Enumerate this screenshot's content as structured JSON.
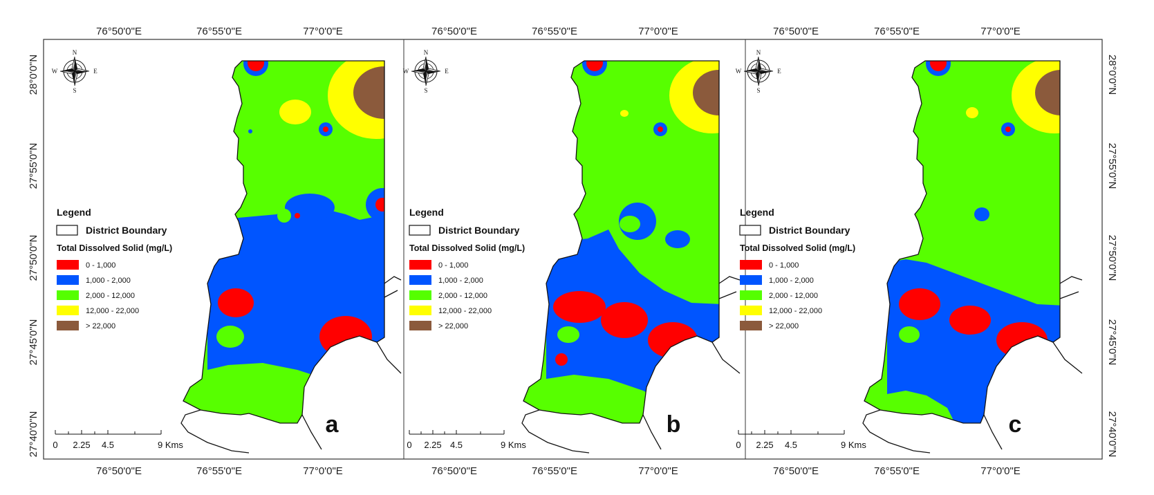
{
  "figure": {
    "top_longitudes": [
      "76°50'0\"E",
      "76°55'0\"E",
      "77°0'0\"E",
      "76°50'0\"E",
      "76°55'0\"E",
      "77°0'0\"E",
      "76°50'0\"E",
      "76°55'0\"E",
      "77°0'0\"E"
    ],
    "bottom_longitudes": [
      "76°50'0\"E",
      "76°55'0\"E",
      "77°0'0\"E",
      "76°50'0\"E",
      "76°55'0\"E",
      "77°0'0\"E",
      "76°50'0\"E",
      "76°55'0\"E",
      "77°0'0\"E"
    ],
    "latitudes": [
      "28°0'0\"N",
      "27°55'0\"N",
      "27°50'0\"N",
      "27°45'0\"N",
      "27°40'0\"N"
    ]
  },
  "legend": {
    "title": "Legend",
    "boundary_label": "District Boundary",
    "tds_title": "Total Dissolved Solid (mg/L)",
    "classes": [
      {
        "label": "0 - 1,000",
        "color": "#ff0000"
      },
      {
        "label": "1,000 - 2,000",
        "color": "#0055ff"
      },
      {
        "label": "2,000 - 12,000",
        "color": "#55ff00"
      },
      {
        "label": "12,000 - 22,000",
        "color": "#ffff00"
      },
      {
        "label": "> 22,000",
        "color": "#8b5a3c"
      }
    ]
  },
  "scale_bar": {
    "labels": [
      "0",
      "2.25",
      "4.5",
      "9 Kms"
    ]
  },
  "compass": {
    "n": "N",
    "s": "S",
    "e": "E",
    "w": "W"
  },
  "panels": [
    {
      "letter": "a"
    },
    {
      "letter": "b"
    },
    {
      "letter": "c"
    }
  ]
}
